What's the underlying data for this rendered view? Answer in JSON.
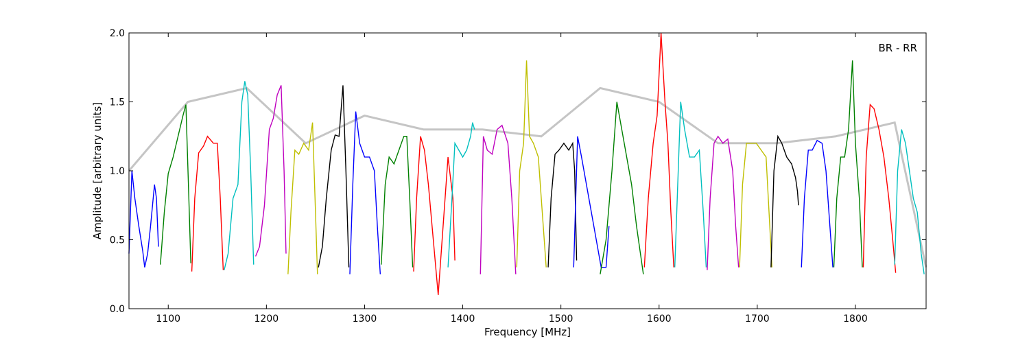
{
  "chart_data": {
    "type": "line",
    "title": "",
    "annotation": "BR - RR",
    "xlabel": "Frequency [MHz]",
    "ylabel": "Amplitude [arbitrary units]",
    "xlim": [
      1060,
      1872
    ],
    "ylim": [
      0.0,
      2.0
    ],
    "xticks": [
      1100,
      1200,
      1300,
      1400,
      1500,
      1600,
      1700,
      1800
    ],
    "yticks": [
      0.0,
      0.5,
      1.0,
      1.5,
      2.0
    ],
    "xtick_labels": [
      "1100",
      "1200",
      "1300",
      "1400",
      "1500",
      "1600",
      "1700",
      "1800"
    ],
    "ytick_labels": [
      "0.0",
      "0.5",
      "1.0",
      "1.5",
      "2.0"
    ],
    "grid": false,
    "reference_color": "#bfbfbf",
    "band_colors": [
      "#0000ff",
      "#008000",
      "#ff0000",
      "#00bfbf",
      "#bf00bf",
      "#bfbf00",
      "#000000"
    ],
    "bands": [
      {
        "color": "#0000ff",
        "x": [
          1060,
          1063,
          1066,
          1070,
          1074,
          1076,
          1079,
          1082,
          1086,
          1088,
          1090
        ],
        "y": [
          0.4,
          1.0,
          0.8,
          0.6,
          0.42,
          0.3,
          0.4,
          0.6,
          0.9,
          0.8,
          0.45
        ]
      },
      {
        "color": "#008000",
        "x": [
          1092,
          1096,
          1100,
          1105,
          1110,
          1115,
          1118,
          1121,
          1123
        ],
        "y": [
          0.32,
          0.7,
          0.98,
          1.1,
          1.25,
          1.4,
          1.48,
          0.8,
          0.33
        ]
      },
      {
        "color": "#ff0000",
        "x": [
          1124,
          1127,
          1131,
          1136,
          1140,
          1146,
          1150,
          1153,
          1156
        ],
        "y": [
          0.27,
          0.8,
          1.13,
          1.18,
          1.25,
          1.2,
          1.2,
          0.8,
          0.28
        ]
      },
      {
        "color": "#00bfbf",
        "x": [
          1157,
          1161,
          1166,
          1171,
          1175,
          1178,
          1181,
          1184,
          1187
        ],
        "y": [
          0.28,
          0.4,
          0.8,
          0.9,
          1.5,
          1.65,
          1.55,
          1.0,
          0.32
        ]
      },
      {
        "color": "#bf00bf",
        "x": [
          1189,
          1193,
          1198,
          1203,
          1207,
          1211,
          1215,
          1218,
          1220
        ],
        "y": [
          0.38,
          0.45,
          0.75,
          1.3,
          1.38,
          1.55,
          1.62,
          1.0,
          0.4
        ]
      },
      {
        "color": "#bfbf00",
        "x": [
          1222,
          1225,
          1229,
          1233,
          1238,
          1243,
          1247,
          1250,
          1252
        ],
        "y": [
          0.25,
          0.7,
          1.15,
          1.12,
          1.2,
          1.15,
          1.35,
          0.7,
          0.25
        ]
      },
      {
        "color": "#000000",
        "x": [
          1253,
          1257,
          1261,
          1266,
          1270,
          1274,
          1278,
          1281,
          1284
        ],
        "y": [
          0.3,
          0.45,
          0.8,
          1.15,
          1.26,
          1.25,
          1.62,
          1.0,
          0.3
        ]
      },
      {
        "color": "#0000ff",
        "x": [
          1285,
          1288,
          1291,
          1295,
          1300,
          1305,
          1310,
          1313,
          1316
        ],
        "y": [
          0.25,
          0.9,
          1.43,
          1.2,
          1.1,
          1.1,
          1.0,
          0.6,
          0.25
        ]
      },
      {
        "color": "#008000",
        "x": [
          1317,
          1321,
          1325,
          1330,
          1335,
          1340,
          1343,
          1346,
          1349
        ],
        "y": [
          0.32,
          0.9,
          1.1,
          1.05,
          1.15,
          1.25,
          1.25,
          0.8,
          0.3
        ]
      },
      {
        "color": "#ff0000",
        "x": [
          1350,
          1353,
          1357,
          1361,
          1365,
          1370,
          1375,
          1380,
          1385,
          1390,
          1392
        ],
        "y": [
          0.27,
          0.8,
          1.25,
          1.15,
          0.9,
          0.5,
          0.1,
          0.6,
          1.1,
          0.8,
          0.35
        ]
      },
      {
        "color": "#00bfbf",
        "x": [
          1385,
          1389,
          1392,
          1396,
          1400,
          1404,
          1408,
          1410,
          1412
        ],
        "y": [
          0.3,
          0.8,
          1.2,
          1.15,
          1.1,
          1.15,
          1.25,
          1.35,
          1.3
        ]
      },
      {
        "color": "#bf00bf",
        "x": [
          1418,
          1421,
          1425,
          1430,
          1435,
          1440,
          1446,
          1450,
          1454
        ],
        "y": [
          0.25,
          1.25,
          1.15,
          1.12,
          1.3,
          1.33,
          1.2,
          0.8,
          0.25
        ]
      },
      {
        "color": "#bfbf00",
        "x": [
          1455,
          1458,
          1462,
          1465,
          1468,
          1472,
          1477,
          1481,
          1485
        ],
        "y": [
          0.3,
          1.0,
          1.2,
          1.8,
          1.25,
          1.2,
          1.1,
          0.7,
          0.3
        ]
      },
      {
        "color": "#000000",
        "x": [
          1487,
          1490,
          1494,
          1498,
          1503,
          1508,
          1512,
          1514,
          1516
        ],
        "y": [
          0.3,
          0.8,
          1.12,
          1.15,
          1.2,
          1.15,
          1.2,
          1.0,
          0.35
        ]
      },
      {
        "color": "#0000ff",
        "x": [
          1513,
          1517,
          1521,
          1526,
          1531,
          1536,
          1541,
          1546,
          1549
        ],
        "y": [
          0.3,
          1.25,
          1.1,
          0.9,
          0.7,
          0.5,
          0.3,
          0.3,
          0.6
        ]
      },
      {
        "color": "#008000",
        "x": [
          1540,
          1546,
          1552,
          1557,
          1562,
          1567,
          1572,
          1577,
          1581,
          1584
        ],
        "y": [
          0.25,
          0.5,
          1.0,
          1.5,
          1.3,
          1.1,
          0.9,
          0.6,
          0.4,
          0.25
        ]
      },
      {
        "color": "#ff0000",
        "x": [
          1585,
          1589,
          1594,
          1598,
          1602,
          1606,
          1609,
          1612,
          1615
        ],
        "y": [
          0.3,
          0.8,
          1.2,
          1.4,
          2.0,
          1.5,
          1.2,
          0.7,
          0.3
        ]
      },
      {
        "color": "#00bfbf",
        "x": [
          1616,
          1619,
          1622,
          1626,
          1631,
          1636,
          1641,
          1645,
          1648
        ],
        "y": [
          0.3,
          0.9,
          1.5,
          1.3,
          1.1,
          1.1,
          1.15,
          0.7,
          0.3
        ]
      },
      {
        "color": "#bf00bf",
        "x": [
          1649,
          1652,
          1656,
          1660,
          1665,
          1670,
          1675,
          1678,
          1681
        ],
        "y": [
          0.28,
          0.8,
          1.2,
          1.25,
          1.2,
          1.23,
          1.0,
          0.6,
          0.3
        ]
      },
      {
        "color": "#bfbf00",
        "x": [
          1682,
          1685,
          1689,
          1694,
          1699,
          1704,
          1709,
          1712,
          1715
        ],
        "y": [
          0.3,
          0.9,
          1.2,
          1.2,
          1.2,
          1.15,
          1.1,
          0.7,
          0.3
        ]
      },
      {
        "color": "#000000",
        "x": [
          1714,
          1717,
          1721,
          1725,
          1730,
          1735,
          1739,
          1741,
          1742
        ],
        "y": [
          0.3,
          1.0,
          1.25,
          1.2,
          1.1,
          1.05,
          0.95,
          0.85,
          0.75
        ]
      },
      {
        "color": "#0000ff",
        "x": [
          1745,
          1748,
          1752,
          1756,
          1761,
          1766,
          1770,
          1774,
          1777
        ],
        "y": [
          0.3,
          0.8,
          1.15,
          1.15,
          1.22,
          1.2,
          1.0,
          0.6,
          0.3
        ]
      },
      {
        "color": "#008000",
        "x": [
          1778,
          1781,
          1785,
          1789,
          1793,
          1797,
          1800,
          1804,
          1807
        ],
        "y": [
          0.3,
          0.8,
          1.1,
          1.1,
          1.3,
          1.8,
          1.2,
          0.8,
          0.3
        ]
      },
      {
        "color": "#ff0000",
        "x": [
          1808,
          1811,
          1815,
          1819,
          1824,
          1829,
          1834,
          1838,
          1841
        ],
        "y": [
          0.3,
          1.1,
          1.48,
          1.45,
          1.3,
          1.1,
          0.8,
          0.5,
          0.26
        ]
      },
      {
        "color": "#00bfbf",
        "x": [
          1840,
          1843,
          1847,
          1851,
          1855,
          1859,
          1863,
          1867,
          1870
        ],
        "y": [
          0.32,
          1.0,
          1.3,
          1.2,
          1.0,
          0.8,
          0.7,
          0.4,
          0.25
        ]
      }
    ],
    "reference": {
      "color": "#bfbf00",
      "x": [
        1060,
        1120,
        1180,
        1240,
        1300,
        1360,
        1420,
        1480,
        1540,
        1600,
        1660,
        1720,
        1780,
        1840,
        1872
      ],
      "y": [
        1.0,
        1.5,
        1.6,
        1.2,
        1.4,
        1.3,
        1.3,
        1.25,
        1.6,
        1.5,
        1.2,
        1.2,
        1.25,
        1.35,
        0.3
      ]
    }
  }
}
